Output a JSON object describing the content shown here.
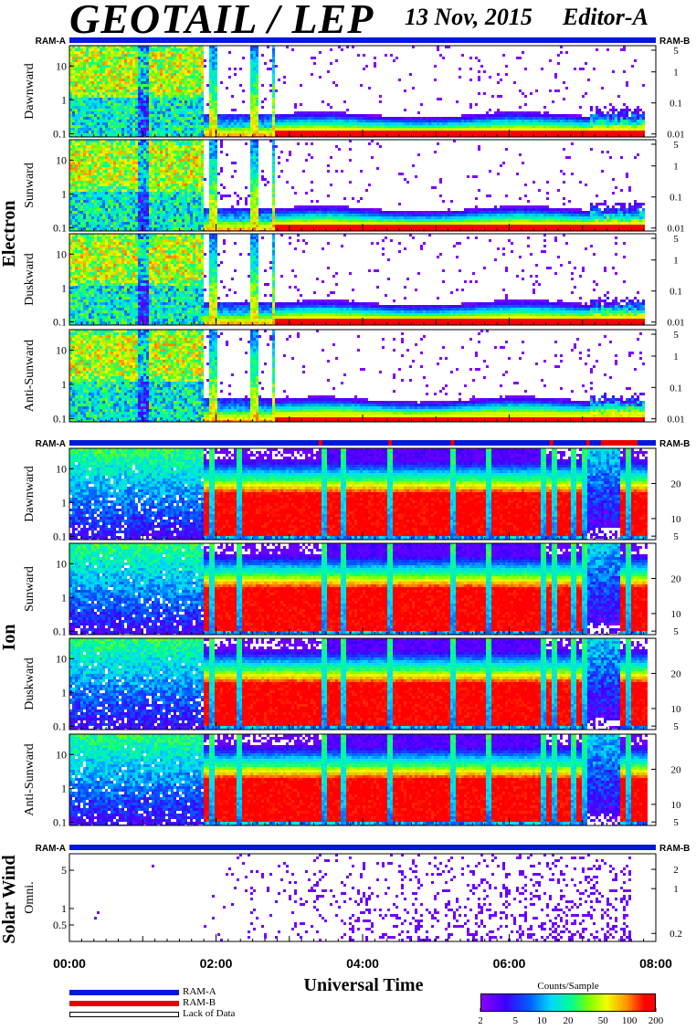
{
  "header": {
    "title": "GEOTAIL / LEP",
    "date": "13 Nov, 2015",
    "editor": "Editor-A"
  },
  "colors": {
    "ram_a": "#0018d8",
    "ram_b": "#e80000",
    "lack_of_data": "#ffffff"
  },
  "chart_data": {
    "type": "heatmap",
    "x_axis": {
      "label": "Universal Time",
      "range": [
        "00:00",
        "08:00"
      ],
      "ticks": [
        "00:00",
        "02:00",
        "04:00",
        "06:00",
        "08:00"
      ]
    },
    "colorbar": {
      "label": "Counts/Sample",
      "ticks": [
        "2",
        "5",
        "10",
        "20",
        "50",
        "100",
        "200"
      ],
      "scale": "log"
    },
    "legend": [
      {
        "label": "RAM-A",
        "color": "#0018d8"
      },
      {
        "label": "RAM-B",
        "color": "#e80000"
      },
      {
        "label": "Lack of Data",
        "color": "#ffffff"
      }
    ],
    "groups": [
      {
        "name": "Electron",
        "ram_left": "RAM-A",
        "ram_right": "RAM-B",
        "ram_b_intervals": [],
        "right_scale": "log",
        "panels": [
          {
            "name": "Dawnward",
            "left_ticks": [
              "10",
              "1",
              "0.1"
            ],
            "right_ticks": [
              "5",
              "1",
              "0.1",
              "0.01"
            ]
          },
          {
            "name": "Sunward",
            "left_ticks": [
              "10",
              "1",
              "0.1"
            ],
            "right_ticks": [
              "5",
              "1",
              "0.1",
              "0.01"
            ]
          },
          {
            "name": "Duskward",
            "left_ticks": [
              "10",
              "1",
              "0.1"
            ],
            "right_ticks": [
              "5",
              "1",
              "0.1",
              "0.01"
            ]
          },
          {
            "name": "Anti-Sunward",
            "left_ticks": [
              "10",
              "1",
              "0.1"
            ],
            "right_ticks": [
              "5",
              "1",
              "0.1",
              "0.01"
            ]
          }
        ]
      },
      {
        "name": "Ion",
        "ram_left": "RAM-A",
        "ram_right": "RAM-B",
        "ram_b_intervals": [
          [
            3.4,
            3.45
          ],
          [
            4.35,
            4.4
          ],
          [
            5.2,
            5.25
          ],
          [
            6.55,
            6.6
          ],
          [
            7.05,
            7.1
          ],
          [
            7.25,
            7.75
          ]
        ],
        "right_scale": "linear",
        "panels": [
          {
            "name": "Dawnward",
            "left_ticks": [
              "10",
              "1",
              "0.1"
            ],
            "right_ticks": [
              "20",
              "10",
              "5"
            ]
          },
          {
            "name": "Sunward",
            "left_ticks": [
              "10",
              "1",
              "0.1"
            ],
            "right_ticks": [
              "20",
              "10",
              "5"
            ]
          },
          {
            "name": "Duskward",
            "left_ticks": [
              "10",
              "1",
              "0.1"
            ],
            "right_ticks": [
              "20",
              "10",
              "5"
            ]
          },
          {
            "name": "Anti-Sunward",
            "left_ticks": [
              "10",
              "1",
              "0.1"
            ],
            "right_ticks": [
              "20",
              "10",
              "5"
            ]
          }
        ]
      },
      {
        "name": "Solar Wind",
        "ram_left": "RAM-A",
        "ram_right": "RAM-B",
        "ram_b_intervals": [],
        "right_scale": "log",
        "panels": [
          {
            "name": "Omni.",
            "left_ticks": [
              "5",
              "1",
              "0.5"
            ],
            "right_ticks": [
              "2",
              "1",
              "0.2"
            ]
          }
        ]
      }
    ]
  }
}
